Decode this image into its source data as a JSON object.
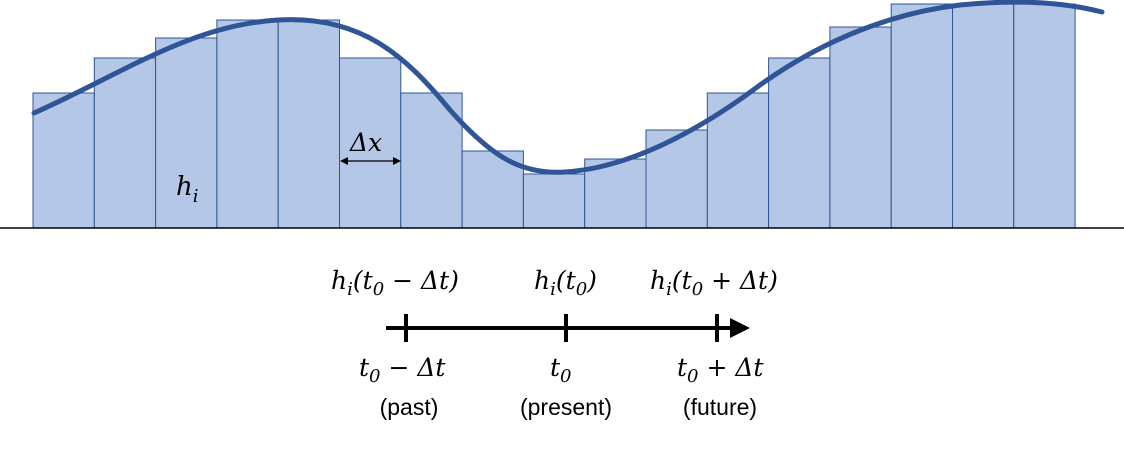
{
  "colors": {
    "bar_fill": "#b4c7e7",
    "bar_stroke": "#2f5597",
    "curve": "#2f5597",
    "axis": "#000000"
  },
  "histogram": {
    "bar_heights": [
      135,
      170,
      190,
      208,
      208,
      170,
      135,
      77,
      54,
      69,
      98,
      135,
      170,
      201,
      224,
      224,
      224
    ],
    "bar_height_max": 224,
    "labels": {
      "height": "h",
      "height_sub": "i",
      "width": "Δx"
    }
  },
  "timeline": {
    "top_labels": [
      {
        "h": "h",
        "sub": "i",
        "arg_pre": "(t",
        "arg_sub": "0",
        "arg_post": " − Δt)"
      },
      {
        "h": "h",
        "sub": "i",
        "arg_pre": "(t",
        "arg_sub": "0",
        "arg_post": ")"
      },
      {
        "h": "h",
        "sub": "i",
        "arg_pre": "(t",
        "arg_sub": "0",
        "arg_post": " + Δt)"
      }
    ],
    "tick_labels": [
      {
        "t": "t",
        "sub": "0",
        "post": " − Δt",
        "desc": "(past)"
      },
      {
        "t": "t",
        "sub": "0",
        "post": "",
        "desc": "(present)"
      },
      {
        "t": "t",
        "sub": "0",
        "post": " + Δt",
        "desc": "(future)"
      }
    ]
  }
}
